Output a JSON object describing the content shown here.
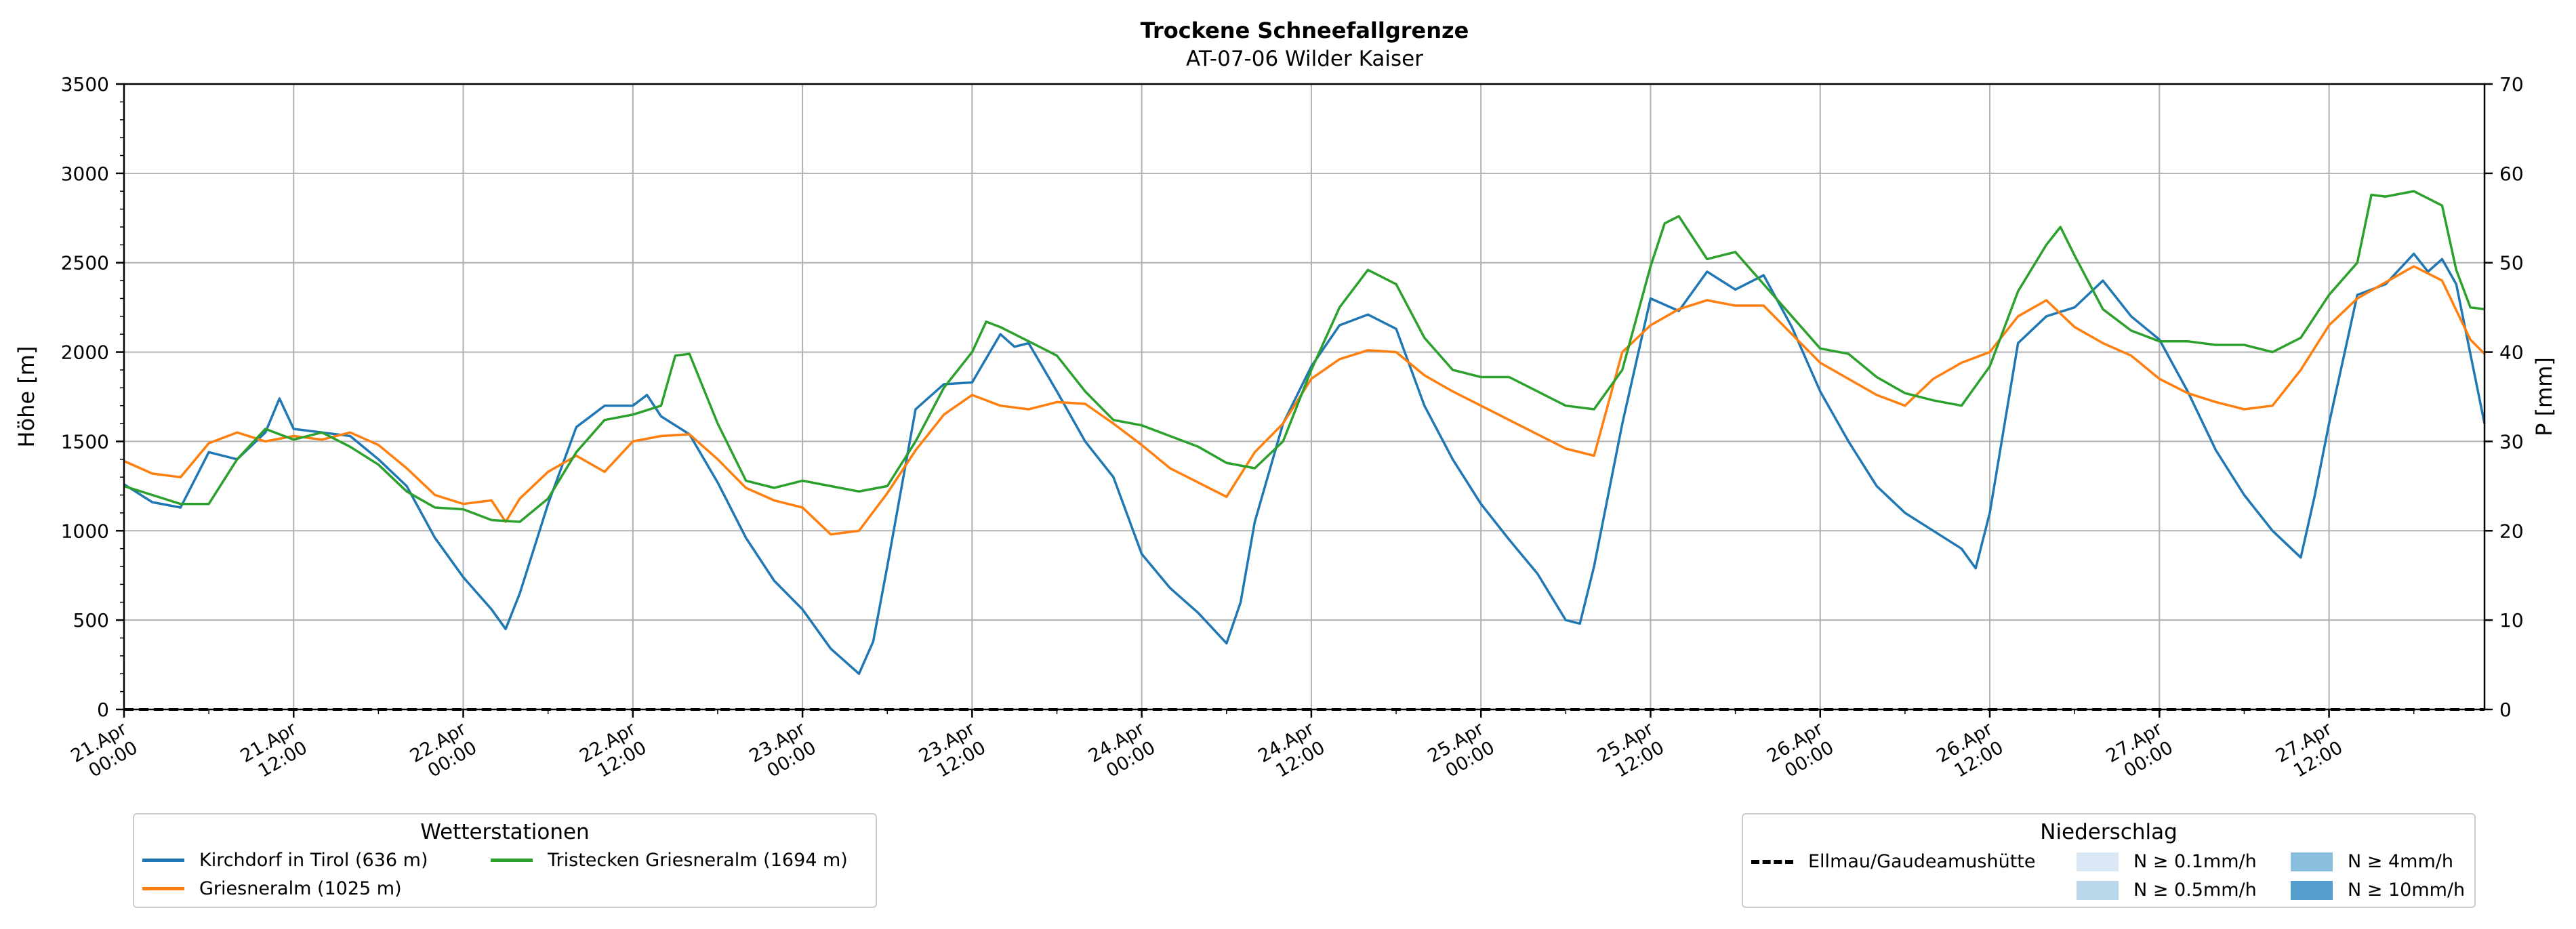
{
  "chart_data": {
    "type": "line",
    "title": "Trockene Schneefallgrenze",
    "subtitle": "AT-07-06 Wilder Kaiser",
    "ylabel": "Höhe [m]",
    "y2label": "P [mm]",
    "ylim": [
      0,
      3500
    ],
    "y2lim": [
      0,
      70
    ],
    "yticks": [
      0,
      500,
      1000,
      1500,
      2000,
      2500,
      3000,
      3500
    ],
    "y2ticks": [
      0,
      10,
      20,
      30,
      40,
      50,
      60,
      70
    ],
    "xlim_hours": [
      0,
      167
    ],
    "xticks": [
      {
        "hour": 0,
        "line1": "21.Apr",
        "line2": "00:00"
      },
      {
        "hour": 12,
        "line1": "21.Apr",
        "line2": "12:00"
      },
      {
        "hour": 24,
        "line1": "22.Apr",
        "line2": "00:00"
      },
      {
        "hour": 36,
        "line1": "22.Apr",
        "line2": "12:00"
      },
      {
        "hour": 48,
        "line1": "23.Apr",
        "line2": "00:00"
      },
      {
        "hour": 60,
        "line1": "23.Apr",
        "line2": "12:00"
      },
      {
        "hour": 72,
        "line1": "24.Apr",
        "line2": "00:00"
      },
      {
        "hour": 84,
        "line1": "24.Apr",
        "line2": "12:00"
      },
      {
        "hour": 96,
        "line1": "25.Apr",
        "line2": "00:00"
      },
      {
        "hour": 108,
        "line1": "25.Apr",
        "line2": "12:00"
      },
      {
        "hour": 120,
        "line1": "26.Apr",
        "line2": "00:00"
      },
      {
        "hour": 132,
        "line1": "26.Apr",
        "line2": "12:00"
      },
      {
        "hour": 144,
        "line1": "27.Apr",
        "line2": "00:00"
      },
      {
        "hour": 156,
        "line1": "27.Apr",
        "line2": "12:00"
      }
    ],
    "grid": true,
    "series": [
      {
        "name": "Kirchdorf in Tirol (636 m)",
        "color": "#1f77b4",
        "points": [
          [
            0,
            1260
          ],
          [
            2,
            1160
          ],
          [
            4,
            1130
          ],
          [
            6,
            1440
          ],
          [
            8,
            1400
          ],
          [
            10,
            1550
          ],
          [
            11,
            1740
          ],
          [
            12,
            1570
          ],
          [
            16,
            1530
          ],
          [
            18,
            1400
          ],
          [
            20,
            1250
          ],
          [
            22,
            960
          ],
          [
            24,
            740
          ],
          [
            26,
            560
          ],
          [
            27,
            450
          ],
          [
            28,
            650
          ],
          [
            30,
            1150
          ],
          [
            32,
            1580
          ],
          [
            34,
            1700
          ],
          [
            36,
            1700
          ],
          [
            37,
            1760
          ],
          [
            38,
            1640
          ],
          [
            40,
            1540
          ],
          [
            42,
            1270
          ],
          [
            44,
            960
          ],
          [
            46,
            720
          ],
          [
            48,
            560
          ],
          [
            50,
            340
          ],
          [
            52,
            200
          ],
          [
            53,
            380
          ],
          [
            54,
            800
          ],
          [
            56,
            1680
          ],
          [
            58,
            1820
          ],
          [
            60,
            1830
          ],
          [
            62,
            2100
          ],
          [
            63,
            2030
          ],
          [
            64,
            2050
          ],
          [
            66,
            1780
          ],
          [
            68,
            1500
          ],
          [
            70,
            1300
          ],
          [
            72,
            870
          ],
          [
            74,
            680
          ],
          [
            76,
            540
          ],
          [
            78,
            370
          ],
          [
            79,
            600
          ],
          [
            80,
            1050
          ],
          [
            82,
            1600
          ],
          [
            84,
            1920
          ],
          [
            86,
            2150
          ],
          [
            88,
            2210
          ],
          [
            90,
            2130
          ],
          [
            92,
            1700
          ],
          [
            94,
            1400
          ],
          [
            96,
            1150
          ],
          [
            98,
            950
          ],
          [
            100,
            760
          ],
          [
            102,
            500
          ],
          [
            103,
            480
          ],
          [
            104,
            800
          ],
          [
            106,
            1600
          ],
          [
            108,
            2300
          ],
          [
            110,
            2230
          ],
          [
            112,
            2450
          ],
          [
            114,
            2350
          ],
          [
            116,
            2430
          ],
          [
            118,
            2140
          ],
          [
            120,
            1780
          ],
          [
            122,
            1500
          ],
          [
            124,
            1250
          ],
          [
            126,
            1100
          ],
          [
            128,
            1000
          ],
          [
            130,
            900
          ],
          [
            131,
            790
          ],
          [
            132,
            1100
          ],
          [
            134,
            2050
          ],
          [
            136,
            2200
          ],
          [
            138,
            2250
          ],
          [
            140,
            2400
          ],
          [
            142,
            2200
          ],
          [
            144,
            2070
          ],
          [
            146,
            1780
          ],
          [
            148,
            1450
          ],
          [
            150,
            1200
          ],
          [
            152,
            1000
          ],
          [
            154,
            850
          ],
          [
            155,
            1200
          ],
          [
            156,
            1600
          ],
          [
            158,
            2320
          ],
          [
            160,
            2380
          ],
          [
            162,
            2550
          ],
          [
            163,
            2450
          ],
          [
            164,
            2520
          ],
          [
            165,
            2380
          ],
          [
            167,
            1600
          ]
        ]
      },
      {
        "name": "Griesneralm (1025 m)",
        "color": "#ff7f0e",
        "points": [
          [
            0,
            1390
          ],
          [
            2,
            1320
          ],
          [
            4,
            1300
          ],
          [
            6,
            1490
          ],
          [
            8,
            1550
          ],
          [
            10,
            1500
          ],
          [
            12,
            1530
          ],
          [
            14,
            1510
          ],
          [
            16,
            1550
          ],
          [
            18,
            1480
          ],
          [
            20,
            1350
          ],
          [
            22,
            1200
          ],
          [
            24,
            1150
          ],
          [
            26,
            1170
          ],
          [
            27,
            1050
          ],
          [
            28,
            1180
          ],
          [
            30,
            1330
          ],
          [
            32,
            1420
          ],
          [
            34,
            1330
          ],
          [
            36,
            1500
          ],
          [
            38,
            1530
          ],
          [
            40,
            1540
          ],
          [
            42,
            1400
          ],
          [
            44,
            1240
          ],
          [
            46,
            1170
          ],
          [
            48,
            1130
          ],
          [
            50,
            980
          ],
          [
            52,
            1000
          ],
          [
            54,
            1210
          ],
          [
            56,
            1450
          ],
          [
            58,
            1650
          ],
          [
            60,
            1760
          ],
          [
            62,
            1700
          ],
          [
            64,
            1680
          ],
          [
            66,
            1720
          ],
          [
            68,
            1710
          ],
          [
            70,
            1600
          ],
          [
            72,
            1480
          ],
          [
            74,
            1350
          ],
          [
            76,
            1270
          ],
          [
            78,
            1190
          ],
          [
            80,
            1440
          ],
          [
            82,
            1600
          ],
          [
            84,
            1850
          ],
          [
            86,
            1960
          ],
          [
            88,
            2010
          ],
          [
            90,
            2000
          ],
          [
            92,
            1870
          ],
          [
            94,
            1780
          ],
          [
            96,
            1700
          ],
          [
            98,
            1620
          ],
          [
            100,
            1540
          ],
          [
            102,
            1460
          ],
          [
            104,
            1420
          ],
          [
            106,
            2000
          ],
          [
            108,
            2150
          ],
          [
            110,
            2240
          ],
          [
            112,
            2290
          ],
          [
            114,
            2260
          ],
          [
            116,
            2260
          ],
          [
            118,
            2100
          ],
          [
            120,
            1940
          ],
          [
            122,
            1850
          ],
          [
            124,
            1760
          ],
          [
            126,
            1700
          ],
          [
            128,
            1850
          ],
          [
            130,
            1940
          ],
          [
            132,
            2000
          ],
          [
            134,
            2200
          ],
          [
            136,
            2290
          ],
          [
            138,
            2140
          ],
          [
            140,
            2050
          ],
          [
            142,
            1980
          ],
          [
            144,
            1850
          ],
          [
            146,
            1770
          ],
          [
            148,
            1720
          ],
          [
            150,
            1680
          ],
          [
            152,
            1700
          ],
          [
            154,
            1900
          ],
          [
            156,
            2150
          ],
          [
            158,
            2300
          ],
          [
            160,
            2390
          ],
          [
            162,
            2480
          ],
          [
            164,
            2400
          ],
          [
            166,
            2070
          ],
          [
            167,
            1990
          ]
        ]
      },
      {
        "name": "Tristecken Griesneralm  (1694 m)",
        "color": "#2ca02c",
        "points": [
          [
            0,
            1250
          ],
          [
            2,
            1200
          ],
          [
            4,
            1150
          ],
          [
            6,
            1150
          ],
          [
            8,
            1400
          ],
          [
            10,
            1570
          ],
          [
            12,
            1510
          ],
          [
            14,
            1550
          ],
          [
            16,
            1470
          ],
          [
            18,
            1370
          ],
          [
            20,
            1220
          ],
          [
            22,
            1130
          ],
          [
            24,
            1120
          ],
          [
            26,
            1060
          ],
          [
            28,
            1050
          ],
          [
            30,
            1180
          ],
          [
            32,
            1440
          ],
          [
            34,
            1620
          ],
          [
            36,
            1650
          ],
          [
            38,
            1700
          ],
          [
            39,
            1980
          ],
          [
            40,
            1990
          ],
          [
            42,
            1600
          ],
          [
            44,
            1280
          ],
          [
            46,
            1240
          ],
          [
            48,
            1280
          ],
          [
            50,
            1250
          ],
          [
            52,
            1220
          ],
          [
            54,
            1250
          ],
          [
            56,
            1500
          ],
          [
            58,
            1800
          ],
          [
            60,
            2000
          ],
          [
            61,
            2170
          ],
          [
            62,
            2140
          ],
          [
            64,
            2060
          ],
          [
            66,
            1980
          ],
          [
            68,
            1780
          ],
          [
            70,
            1620
          ],
          [
            72,
            1590
          ],
          [
            74,
            1530
          ],
          [
            76,
            1470
          ],
          [
            78,
            1380
          ],
          [
            80,
            1350
          ],
          [
            82,
            1500
          ],
          [
            84,
            1900
          ],
          [
            86,
            2250
          ],
          [
            88,
            2460
          ],
          [
            90,
            2380
          ],
          [
            92,
            2080
          ],
          [
            94,
            1900
          ],
          [
            96,
            1860
          ],
          [
            98,
            1860
          ],
          [
            100,
            1780
          ],
          [
            102,
            1700
          ],
          [
            104,
            1680
          ],
          [
            106,
            1900
          ],
          [
            108,
            2480
          ],
          [
            109,
            2720
          ],
          [
            110,
            2760
          ],
          [
            112,
            2520
          ],
          [
            114,
            2560
          ],
          [
            116,
            2380
          ],
          [
            118,
            2200
          ],
          [
            120,
            2020
          ],
          [
            122,
            1990
          ],
          [
            124,
            1860
          ],
          [
            126,
            1770
          ],
          [
            128,
            1730
          ],
          [
            130,
            1700
          ],
          [
            132,
            1920
          ],
          [
            134,
            2340
          ],
          [
            136,
            2600
          ],
          [
            137,
            2700
          ],
          [
            138,
            2540
          ],
          [
            140,
            2240
          ],
          [
            142,
            2120
          ],
          [
            144,
            2060
          ],
          [
            146,
            2060
          ],
          [
            148,
            2040
          ],
          [
            150,
            2040
          ],
          [
            152,
            2000
          ],
          [
            154,
            2080
          ],
          [
            156,
            2320
          ],
          [
            158,
            2500
          ],
          [
            159,
            2880
          ],
          [
            160,
            2870
          ],
          [
            162,
            2900
          ],
          [
            164,
            2820
          ],
          [
            165,
            2460
          ],
          [
            166,
            2250
          ],
          [
            167,
            2240
          ]
        ]
      },
      {
        "name": "Ellmau/Gaudeamushütte",
        "color": "#000000",
        "dashed": true,
        "axis": "right",
        "points": [
          [
            0,
            0
          ],
          [
            167,
            0
          ]
        ]
      }
    ]
  },
  "legends": {
    "stations": {
      "title": "Wetterstationen",
      "items": [
        {
          "label": "Kirchdorf in Tirol (636 m)",
          "color": "#1f77b4"
        },
        {
          "label": "Griesneralm (1025 m)",
          "color": "#ff7f0e"
        },
        {
          "label": "Tristecken Griesneralm  (1694 m)",
          "color": "#2ca02c"
        }
      ]
    },
    "precip": {
      "title": "Niederschlag",
      "line_label": "Ellmau/Gaudeamushütte",
      "items": [
        {
          "label": "N ≥ 0.1mm/h",
          "color": "#dbe9f6"
        },
        {
          "label": "N ≥ 0.5mm/h",
          "color": "#bad6eb"
        },
        {
          "label": "N ≥ 4mm/h",
          "color": "#89bedc"
        },
        {
          "label": "N ≥ 10mm/h",
          "color": "#539ecd"
        }
      ]
    }
  }
}
